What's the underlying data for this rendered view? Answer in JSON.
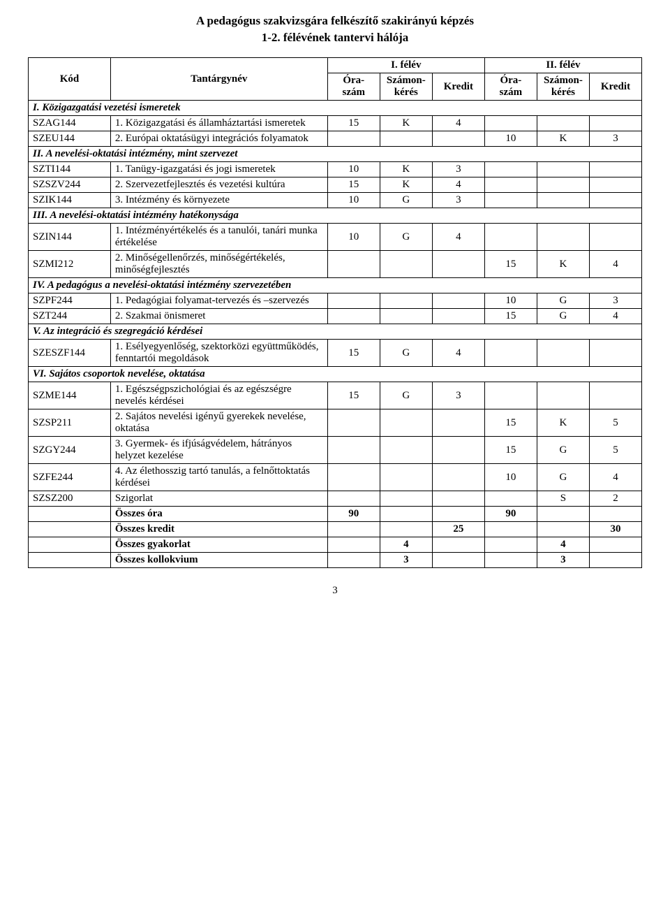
{
  "title_line1": "A pedagógus szakvizsgára felkészítő szakirányú képzés",
  "title_line2": "1-2. félévének tantervi hálója",
  "page_number": "3",
  "header": {
    "code": "Kód",
    "subject": "Tantárgynév",
    "sem1": "I. félév",
    "sem2": "II. félév",
    "hours": "Óra-szám",
    "exam": "Számon-kérés",
    "credit": "Kredit"
  },
  "sections": {
    "s1": "I. Közigazgatási vezetési ismeretek",
    "s2": "II. A nevelési-oktatási intézmény, mint szervezet",
    "s3": "III. A nevelési-oktatási intézmény hatékonysága",
    "s4": "IV. A pedagógus a nevelési-oktatási intézmény szervezetében",
    "s5": "V. Az integráció és szegregáció kérdései",
    "s6": "VI. Sajátos csoportok nevelése, oktatása"
  },
  "rows": {
    "r1": {
      "code": "SZAG144",
      "name": "1. Közigazgatási és államháztartási ismeretek",
      "h1": "15",
      "e1": "K",
      "c1": "4",
      "h2": "",
      "e2": "",
      "c2": ""
    },
    "r2": {
      "code": "SZEU144",
      "name": "2. Európai oktatásügyi integrációs folyamatok",
      "h1": "",
      "e1": "",
      "c1": "",
      "h2": "10",
      "e2": "K",
      "c2": "3"
    },
    "r3": {
      "code": "SZTI144",
      "name": "1. Tanügy-igazgatási és jogi ismeretek",
      "h1": "10",
      "e1": "K",
      "c1": "3",
      "h2": "",
      "e2": "",
      "c2": ""
    },
    "r4": {
      "code": "SZSZV244",
      "name": "2. Szervezetfejlesztés és vezetési kultúra",
      "h1": "15",
      "e1": "K",
      "c1": "4",
      "h2": "",
      "e2": "",
      "c2": ""
    },
    "r5": {
      "code": "SZIK144",
      "name": "3. Intézmény és környezete",
      "h1": "10",
      "e1": "G",
      "c1": "3",
      "h2": "",
      "e2": "",
      "c2": ""
    },
    "r6": {
      "code": "SZIN144",
      "name": "1. Intézményértékelés és a tanulói, tanári munka értékelése",
      "h1": "10",
      "e1": "G",
      "c1": "4",
      "h2": "",
      "e2": "",
      "c2": ""
    },
    "r7": {
      "code": "SZMI212",
      "name": "2. Minőségellenőrzés, minőségértékelés, minőségfejlesztés",
      "h1": "",
      "e1": "",
      "c1": "",
      "h2": "15",
      "e2": "K",
      "c2": "4"
    },
    "r8": {
      "code": "SZPF244",
      "name": "1. Pedagógiai folyamat-tervezés és –szervezés",
      "h1": "",
      "e1": "",
      "c1": "",
      "h2": "10",
      "e2": "G",
      "c2": "3"
    },
    "r9": {
      "code": "SZT244",
      "name": "2. Szakmai önismeret",
      "h1": "",
      "e1": "",
      "c1": "",
      "h2": "15",
      "e2": "G",
      "c2": "4"
    },
    "r10": {
      "code": "SZESZF144",
      "name": "1. Esélyegyenlőség, szektorközi együttműködés, fenntartói megoldások",
      "h1": "15",
      "e1": "G",
      "c1": "4",
      "h2": "",
      "e2": "",
      "c2": ""
    },
    "r11": {
      "code": "SZME144",
      "name": "1. Egészségpszichológiai és az egészségre nevelés kérdései",
      "h1": "15",
      "e1": "G",
      "c1": "3",
      "h2": "",
      "e2": "",
      "c2": ""
    },
    "r12": {
      "code": "SZSP211",
      "name": "2. Sajátos nevelési igényű gyerekek nevelése, oktatása",
      "h1": "",
      "e1": "",
      "c1": "",
      "h2": "15",
      "e2": "K",
      "c2": "5"
    },
    "r13": {
      "code": "SZGY244",
      "name": "3. Gyermek- és ifjúságvédelem, hátrányos helyzet kezelése",
      "h1": "",
      "e1": "",
      "c1": "",
      "h2": "15",
      "e2": "G",
      "c2": "5"
    },
    "r14": {
      "code": "SZFE244",
      "name": "4. Az élethosszig tartó tanulás, a felnőttoktatás kérdései",
      "h1": "",
      "e1": "",
      "c1": "",
      "h2": "10",
      "e2": "G",
      "c2": "4"
    },
    "r15": {
      "code": "SZSZ200",
      "name": "Szigorlat",
      "h1": "",
      "e1": "",
      "c1": "",
      "h2": "",
      "e2": "S",
      "c2": "2"
    }
  },
  "summary": {
    "hours": {
      "label": "Összes óra",
      "v1": "90",
      "v2": "90"
    },
    "credits": {
      "label": "Összes kredit",
      "v1": "25",
      "v2": "30"
    },
    "practical": {
      "label": "Összes gyakorlat",
      "v1": "4",
      "v2": "4"
    },
    "colloq": {
      "label": "Összes kollokvium",
      "v1": "3",
      "v2": "3"
    }
  }
}
